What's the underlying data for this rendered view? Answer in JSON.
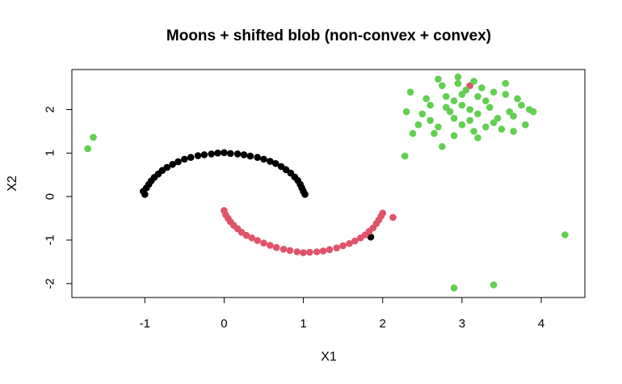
{
  "chart_data": {
    "type": "scatter",
    "title": "Moons + shifted blob (non-convex + convex)",
    "xlabel": "X1",
    "ylabel": "X2",
    "xlim": [
      -1.92,
      4.55
    ],
    "ylim": [
      -2.32,
      2.92
    ],
    "x_ticks": [
      -1,
      0,
      1,
      2,
      3,
      4
    ],
    "y_ticks": [
      -2,
      -1,
      0,
      1,
      2
    ],
    "grid": false,
    "legend": "none",
    "colors": {
      "cluster_black": "#000000",
      "cluster_red": "#DF536B",
      "cluster_green": "#61D04F"
    },
    "series": [
      {
        "color_key": "cluster_black",
        "description_points": "upper moon: x from -1.05 to 1.05, y ≈ sqrt(1-x^2)",
        "points": [
          [
            -1.0,
            0.05
          ],
          [
            -1.02,
            0.12
          ],
          [
            -0.98,
            0.2
          ],
          [
            -0.95,
            0.28
          ],
          [
            -0.92,
            0.36
          ],
          [
            -0.88,
            0.44
          ],
          [
            -0.83,
            0.52
          ],
          [
            -0.78,
            0.6
          ],
          [
            -0.72,
            0.67
          ],
          [
            -0.65,
            0.74
          ],
          [
            -0.58,
            0.8
          ],
          [
            -0.5,
            0.86
          ],
          [
            -0.42,
            0.9
          ],
          [
            -0.33,
            0.94
          ],
          [
            -0.25,
            0.96
          ],
          [
            -0.16,
            0.98
          ],
          [
            -0.08,
            1.0
          ],
          [
            0.0,
            1.01
          ],
          [
            0.08,
            0.99
          ],
          [
            0.17,
            0.98
          ],
          [
            0.25,
            0.96
          ],
          [
            0.33,
            0.93
          ],
          [
            0.42,
            0.9
          ],
          [
            0.5,
            0.86
          ],
          [
            0.58,
            0.81
          ],
          [
            0.65,
            0.76
          ],
          [
            0.72,
            0.69
          ],
          [
            0.78,
            0.62
          ],
          [
            0.84,
            0.54
          ],
          [
            0.89,
            0.45
          ],
          [
            0.93,
            0.37
          ],
          [
            0.96,
            0.28
          ],
          [
            0.98,
            0.2
          ],
          [
            1.0,
            0.12
          ],
          [
            1.02,
            0.05
          ],
          [
            1.85,
            -0.93
          ]
        ]
      },
      {
        "color_key": "cluster_red",
        "description_points": "lower moon: centered at (1, 0.5), y ≈ 0.5 - sqrt(1-(x-1)^2)",
        "points": [
          [
            0.0,
            -0.32
          ],
          [
            0.02,
            -0.42
          ],
          [
            0.05,
            -0.5
          ],
          [
            0.08,
            -0.58
          ],
          [
            0.12,
            -0.66
          ],
          [
            0.17,
            -0.74
          ],
          [
            0.22,
            -0.82
          ],
          [
            0.28,
            -0.89
          ],
          [
            0.35,
            -0.95
          ],
          [
            0.42,
            -1.01
          ],
          [
            0.5,
            -1.07
          ],
          [
            0.58,
            -1.12
          ],
          [
            0.66,
            -1.17
          ],
          [
            0.75,
            -1.21
          ],
          [
            0.83,
            -1.24
          ],
          [
            0.92,
            -1.27
          ],
          [
            1.0,
            -1.29
          ],
          [
            1.08,
            -1.28
          ],
          [
            1.17,
            -1.27
          ],
          [
            1.25,
            -1.25
          ],
          [
            1.33,
            -1.22
          ],
          [
            1.42,
            -1.18
          ],
          [
            1.5,
            -1.13
          ],
          [
            1.58,
            -1.08
          ],
          [
            1.65,
            -1.02
          ],
          [
            1.72,
            -0.95
          ],
          [
            1.78,
            -0.88
          ],
          [
            1.83,
            -0.8
          ],
          [
            1.88,
            -0.72
          ],
          [
            1.92,
            -0.62
          ],
          [
            1.95,
            -0.54
          ],
          [
            1.98,
            -0.45
          ],
          [
            2.0,
            -0.38
          ],
          [
            2.13,
            -0.48
          ],
          [
            3.1,
            2.55
          ]
        ]
      },
      {
        "color_key": "cluster_green",
        "description_points": "blob centered near (3.1, 2.0) plus outliers",
        "points": [
          [
            3.1,
            2.0
          ],
          [
            3.0,
            2.1
          ],
          [
            3.2,
            1.9
          ],
          [
            2.9,
            1.8
          ],
          [
            3.3,
            2.2
          ],
          [
            2.8,
            2.3
          ],
          [
            3.4,
            1.7
          ],
          [
            3.05,
            2.45
          ],
          [
            2.7,
            1.6
          ],
          [
            3.55,
            2.35
          ],
          [
            3.15,
            1.5
          ],
          [
            2.6,
            2.1
          ],
          [
            3.65,
            1.85
          ],
          [
            2.95,
            2.6
          ],
          [
            3.5,
            1.55
          ],
          [
            2.5,
            1.9
          ],
          [
            2.75,
            2.55
          ],
          [
            3.25,
            2.5
          ],
          [
            3.75,
            2.1
          ],
          [
            2.65,
            1.45
          ],
          [
            3.4,
            2.4
          ],
          [
            2.85,
            1.95
          ],
          [
            3.0,
            1.65
          ],
          [
            3.35,
            2.05
          ],
          [
            3.2,
            2.3
          ],
          [
            2.9,
            2.2
          ],
          [
            3.6,
            1.95
          ],
          [
            2.55,
            2.25
          ],
          [
            3.45,
            1.8
          ],
          [
            3.1,
            1.75
          ],
          [
            2.8,
            2.05
          ],
          [
            3.3,
            1.6
          ],
          [
            3.0,
            2.35
          ],
          [
            3.7,
            2.25
          ],
          [
            2.45,
            1.65
          ],
          [
            3.85,
            2.0
          ],
          [
            2.3,
            1.95
          ],
          [
            2.7,
            2.7
          ],
          [
            3.55,
            2.6
          ],
          [
            3.2,
            1.35
          ],
          [
            2.35,
            2.4
          ],
          [
            3.8,
            1.65
          ],
          [
            2.9,
            1.4
          ],
          [
            3.15,
            2.65
          ],
          [
            2.6,
            1.75
          ],
          [
            3.65,
            1.5
          ],
          [
            2.75,
            1.15
          ],
          [
            3.9,
            1.95
          ],
          [
            2.95,
            2.75
          ],
          [
            2.38,
            1.45
          ],
          [
            -1.72,
            1.1
          ],
          [
            -1.65,
            1.36
          ],
          [
            2.28,
            0.93
          ],
          [
            4.3,
            -0.88
          ],
          [
            2.9,
            -2.1
          ],
          [
            3.4,
            -2.03
          ]
        ]
      }
    ]
  }
}
